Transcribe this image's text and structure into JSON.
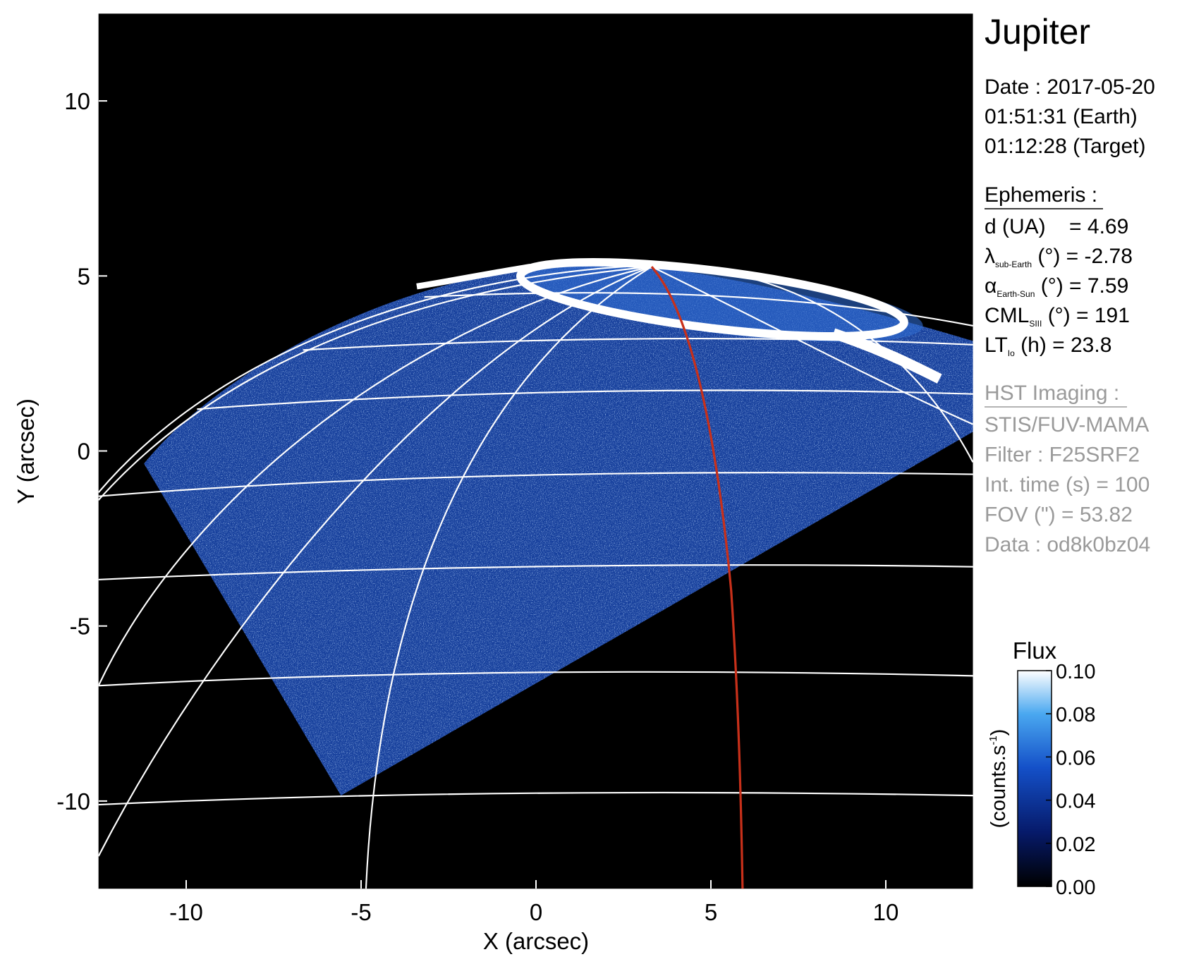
{
  "chart_data": {
    "type": "image",
    "title": "Jupiter",
    "xlabel": "X (arcsec)",
    "ylabel": "Y (arcsec)",
    "xlim": [
      -12.5,
      12.5
    ],
    "ylim": [
      -12.5,
      12.5
    ],
    "xticks": [
      -10,
      -5,
      0,
      5,
      10
    ],
    "yticks": [
      -10,
      -5,
      0,
      5,
      10
    ],
    "colorbar": {
      "title": "Flux",
      "label": "(counts.s",
      "label_sup": "-1",
      "label_end": ")",
      "clim": [
        0,
        0.1
      ],
      "ticks": [
        {
          "value": 0,
          "label": "0.00"
        },
        {
          "value": 0.02,
          "label": "0.02"
        },
        {
          "value": 0.04,
          "label": "0.04"
        },
        {
          "value": 0.06,
          "label": "0.06"
        },
        {
          "value": 0.08,
          "label": "0.08"
        },
        {
          "value": 0.1,
          "label": "0.10"
        }
      ]
    },
    "info": [
      "Date : 2017-05-20",
      "01:51:31 (Earth)",
      "01:12:28 (Target)"
    ],
    "ephemeris": {
      "title": "Ephemeris :",
      "items": [
        {
          "symbol": "d (UA)",
          "sub": "",
          "text": "    = 4.69"
        },
        {
          "symbol": "λ",
          "sub": "sub-Earth",
          "text": " (°) = -2.78"
        },
        {
          "symbol": "α",
          "sub": "Earth-Sun",
          "text": " (°) = 7.59"
        },
        {
          "symbol": "CML",
          "sub": "SIII",
          "text": " (°) = 191"
        },
        {
          "symbol": "LT",
          "sub": "Io",
          "text": " (h) = 23.8"
        }
      ]
    },
    "imaging": {
      "title": "HST Imaging :",
      "lines": [
        "STIS/FUV-MAMA",
        "Filter : F25SRF2",
        "Int. time (s) = 100",
        "FOV (\") = 53.82",
        "Data : od8k0bz04"
      ]
    }
  }
}
